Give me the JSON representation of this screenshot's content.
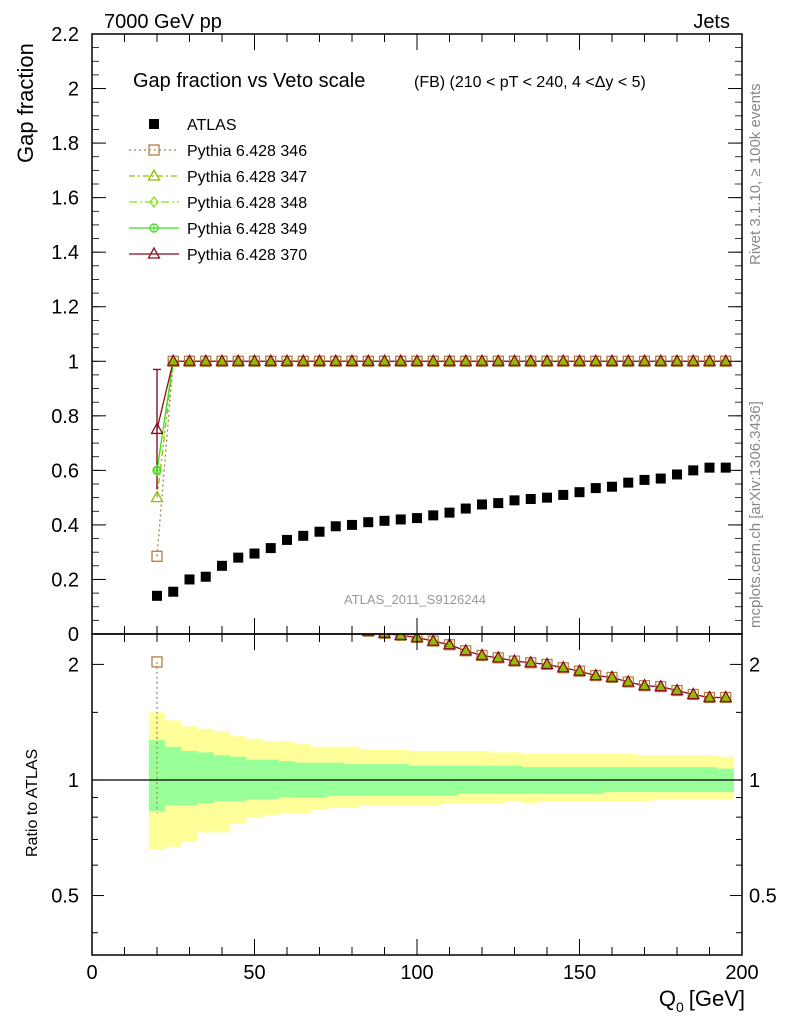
{
  "header": {
    "left": "7000 GeV pp",
    "right": "Jets"
  },
  "side_labels": {
    "rivet": "Rivet 3.1.10, ≥ 100k events",
    "mcplots": "mcplots.cern.ch [arXiv:1306.3436]"
  },
  "watermark": "ATLAS_2011_S9126244",
  "colors": {
    "atlas": "#000000",
    "p346": "#b07d3f",
    "p347": "#8fbf00",
    "p348": "#7fe31f",
    "p349": "#3fdf1f",
    "p370": "#8b0f1f",
    "band_inner": "#99ff99",
    "band_outer": "#ffff99"
  },
  "chart_data": [
    {
      "type": "scatter",
      "title": "Gap fraction vs Veto scale",
      "subtitle": "(FB) (210 < pT < 240, 4 <Δy < 5)",
      "ylabel": "Gap fraction",
      "xlabel": "",
      "xlim": [
        0,
        200
      ],
      "ylim": [
        0,
        2.2
      ],
      "yticks": [
        "0.2",
        "0.4",
        "0.6",
        "0.8",
        "1",
        "1.2",
        "1.4",
        "1.6",
        "1.8",
        "2",
        "2.2"
      ],
      "ytick_values": [
        0.2,
        0.4,
        0.6,
        0.8,
        1,
        1.2,
        1.4,
        1.6,
        1.8,
        2,
        2.2
      ],
      "x": [
        20,
        25,
        30,
        35,
        40,
        45,
        50,
        55,
        60,
        65,
        70,
        75,
        80,
        85,
        90,
        95,
        100,
        105,
        110,
        115,
        120,
        125,
        130,
        135,
        140,
        145,
        150,
        155,
        160,
        165,
        170,
        175,
        180,
        185,
        190,
        195
      ],
      "series": [
        {
          "name": "ATLAS",
          "style": "filled-square",
          "x_start_index": 0,
          "values": [
            0.14,
            0.155,
            0.2,
            0.21,
            0.25,
            0.28,
            0.295,
            0.315,
            0.345,
            0.36,
            0.375,
            0.395,
            0.4,
            0.41,
            0.415,
            0.42,
            0.425,
            0.435,
            0.445,
            0.46,
            0.475,
            0.48,
            0.49,
            0.495,
            0.5,
            0.51,
            0.52,
            0.535,
            0.54,
            0.555,
            0.565,
            0.57,
            0.585,
            0.6,
            0.61,
            0.61
          ]
        },
        {
          "name": "Pythia 6.428 346",
          "style": "open-square",
          "dash": "2,3",
          "first": 0.285,
          "rest": 1.0
        },
        {
          "name": "Pythia 6.428 347",
          "style": "open-triangle",
          "dash": "6,3,2,3",
          "first": 0.5,
          "rest": 1.0
        },
        {
          "name": "Pythia 6.428 348",
          "style": "open-diamond",
          "dash": "8,3,2,3",
          "first": 0.6,
          "rest": 1.0
        },
        {
          "name": "Pythia 6.428 349",
          "style": "open-circle-cross",
          "dash": "",
          "first": 0.6,
          "rest": 1.0
        },
        {
          "name": "Pythia 6.428 370",
          "style": "open-triangle",
          "dash": "",
          "first": 0.75,
          "rest": 1.0,
          "first_err": [
            0.53,
            0.97
          ]
        }
      ]
    },
    {
      "type": "line",
      "ylabel": "Ratio to ATLAS",
      "xlabel": "Q₀ [GeV]",
      "xlabel_main": "Q",
      "xlabel_sub": "0",
      "xlabel_unit": "[GeV]",
      "xlim": [
        0,
        200
      ],
      "ylim": [
        0.35,
        2.4
      ],
      "log_y": true,
      "yticks": [
        "0.5",
        "1",
        "2"
      ],
      "ytick_values": [
        0.5,
        1,
        2
      ],
      "xticks": [
        "0",
        "50",
        "100",
        "150",
        "200"
      ],
      "xtick_values": [
        0,
        50,
        100,
        150,
        200
      ],
      "band_x": [
        17.5,
        22.5,
        27.5,
        32.5,
        37.5,
        42.5,
        47.5,
        52.5,
        57.5,
        62.5,
        67.5,
        72.5,
        77.5,
        82.5,
        87.5,
        92.5,
        97.5,
        102.5,
        107.5,
        112.5,
        117.5,
        122.5,
        127.5,
        132.5,
        137.5,
        142.5,
        147.5,
        152.5,
        157.5,
        162.5,
        167.5,
        172.5,
        177.5,
        182.5,
        187.5,
        192.5,
        197.5
      ],
      "band_outer_hi": [
        1.5,
        1.43,
        1.38,
        1.36,
        1.34,
        1.3,
        1.28,
        1.26,
        1.26,
        1.24,
        1.22,
        1.22,
        1.22,
        1.2,
        1.2,
        1.2,
        1.19,
        1.19,
        1.19,
        1.19,
        1.19,
        1.18,
        1.18,
        1.17,
        1.17,
        1.17,
        1.17,
        1.17,
        1.17,
        1.17,
        1.16,
        1.16,
        1.16,
        1.16,
        1.16,
        1.15
      ],
      "band_outer_lo": [
        0.66,
        0.67,
        0.69,
        0.73,
        0.73,
        0.77,
        0.8,
        0.81,
        0.82,
        0.82,
        0.84,
        0.85,
        0.85,
        0.86,
        0.86,
        0.86,
        0.86,
        0.86,
        0.87,
        0.87,
        0.87,
        0.87,
        0.88,
        0.87,
        0.88,
        0.88,
        0.88,
        0.88,
        0.88,
        0.88,
        0.88,
        0.89,
        0.89,
        0.89,
        0.89,
        0.89
      ],
      "band_inner_hi": [
        1.27,
        1.22,
        1.19,
        1.18,
        1.16,
        1.15,
        1.13,
        1.13,
        1.12,
        1.11,
        1.11,
        1.11,
        1.1,
        1.1,
        1.1,
        1.1,
        1.09,
        1.09,
        1.09,
        1.09,
        1.09,
        1.09,
        1.09,
        1.08,
        1.08,
        1.08,
        1.08,
        1.08,
        1.08,
        1.08,
        1.08,
        1.08,
        1.08,
        1.08,
        1.08,
        1.07
      ],
      "band_inner_lo": [
        0.83,
        0.86,
        0.86,
        0.87,
        0.88,
        0.88,
        0.89,
        0.89,
        0.9,
        0.9,
        0.9,
        0.91,
        0.91,
        0.91,
        0.91,
        0.91,
        0.91,
        0.91,
        0.91,
        0.92,
        0.92,
        0.92,
        0.92,
        0.92,
        0.92,
        0.92,
        0.92,
        0.92,
        0.93,
        0.93,
        0.93,
        0.93,
        0.93,
        0.93,
        0.93,
        0.93
      ],
      "ratio_first": {
        "x": 20,
        "value": 2.03
      },
      "ratio_x": [
        85,
        90,
        95,
        100,
        105,
        110,
        115,
        120,
        125,
        130,
        135,
        140,
        145,
        150,
        155,
        160,
        165,
        170,
        175,
        180,
        185,
        190,
        195
      ],
      "ratio_values": [
        2.44,
        2.41,
        2.38,
        2.35,
        2.3,
        2.25,
        2.17,
        2.11,
        2.08,
        2.04,
        2.02,
        2.0,
        1.96,
        1.92,
        1.87,
        1.85,
        1.8,
        1.76,
        1.75,
        1.71,
        1.67,
        1.64,
        1.64
      ],
      "ratio_offscreen_x": 78
    }
  ]
}
